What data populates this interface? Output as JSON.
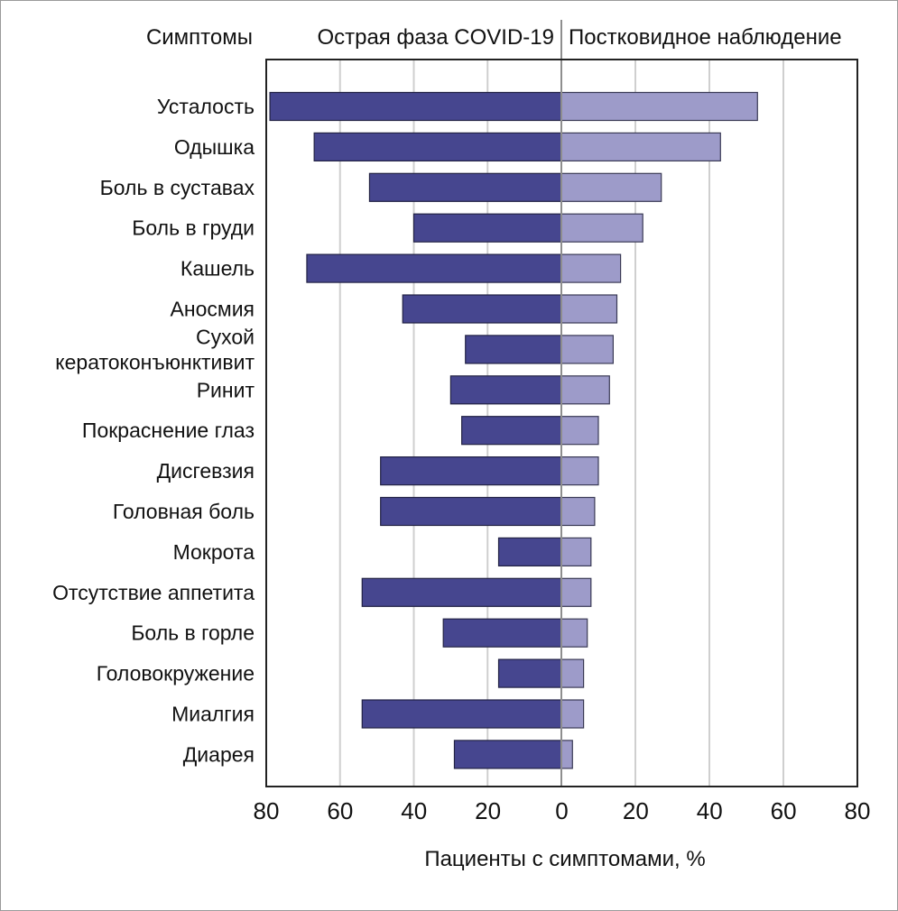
{
  "chart_data": {
    "type": "bar",
    "orientation": "horizontal-diverging",
    "header": {
      "categories_label": "Симптомы",
      "left_label": "Острая фаза COVID-19",
      "right_label": "Постковидное наблюдение"
    },
    "xlabel": "Пациенты с симптомами, %",
    "xlim_left": [
      0,
      80
    ],
    "xlim_right": [
      0,
      80
    ],
    "ticks": [
      "80",
      "60",
      "40",
      "20",
      "0",
      "20",
      "40",
      "60",
      "80"
    ],
    "grid": true,
    "categories": [
      [
        "Усталость"
      ],
      [
        "Одышка"
      ],
      [
        "Боль в суставах"
      ],
      [
        "Боль в груди"
      ],
      [
        "Кашель"
      ],
      [
        "Аносмия"
      ],
      [
        "Сухой",
        "кератоконъюнктивит"
      ],
      [
        "Ринит"
      ],
      [
        "Покраснение глаз"
      ],
      [
        "Дисгевзия"
      ],
      [
        "Головная боль"
      ],
      [
        "Мокрота"
      ],
      [
        "Отсутствие аппетита"
      ],
      [
        "Боль в горле"
      ],
      [
        "Головокружение"
      ],
      [
        "Миалгия"
      ],
      [
        "Диарея"
      ]
    ],
    "series": [
      {
        "name": "Острая фаза COVID-19",
        "color": "#46468f",
        "values": [
          79,
          67,
          52,
          40,
          69,
          43,
          26,
          30,
          27,
          49,
          49,
          17,
          54,
          32,
          17,
          54,
          29
        ]
      },
      {
        "name": "Постковидное наблюдение",
        "color": "#9d9bc9",
        "values": [
          53,
          43,
          27,
          22,
          16,
          15,
          14,
          13,
          10,
          10,
          9,
          8,
          8,
          7,
          6,
          6,
          3
        ]
      }
    ]
  }
}
